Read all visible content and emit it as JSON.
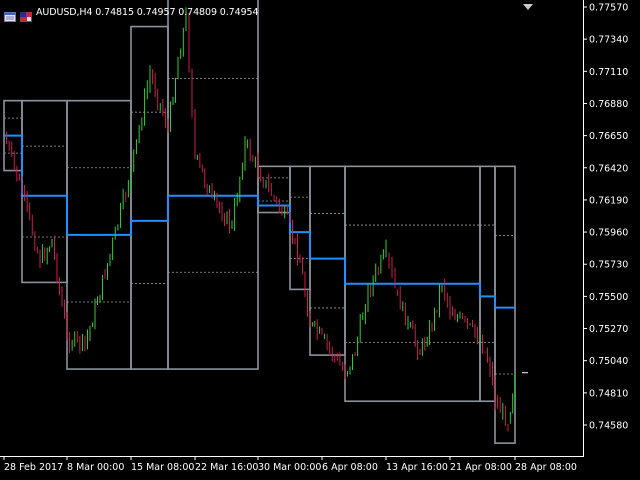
{
  "chart_info": {
    "symbol_timeframe": "AUDUSD,H4",
    "ohlc": "0.74815 0.74957 0.74809 0.74954",
    "icons": [
      "window-menu-icon",
      "flag-icon"
    ]
  },
  "colors": {
    "background": "#000000",
    "bull_candle": "#32CD32",
    "bear_candle": "#C71F4F",
    "channel_outer": "#8A939C",
    "channel_inner": "#9A9A9A",
    "midline": "#1E90FF",
    "axis": "#FFFFFF"
  },
  "price_axis": {
    "labels": [
      "0.77570",
      "0.77340",
      "0.77110",
      "0.76880",
      "0.76650",
      "0.76420",
      "0.76190",
      "0.75960",
      "0.75730",
      "0.75500",
      "0.75270",
      "0.75040",
      "0.74810",
      "0.74580"
    ],
    "min": 0.7436,
    "max": 0.7757
  },
  "time_axis": {
    "labels": [
      "28 Feb 2017",
      "8 Mar 00:00",
      "15 Mar 08:00",
      "22 Mar 16:00",
      "30 Mar 00:00",
      "6 Apr 08:00",
      "13 Apr 16:00",
      "21 Apr 08:00",
      "28 Apr 08:00"
    ]
  },
  "chart_data": {
    "type": "candlestick",
    "symbol": "AUDUSD",
    "timeframe": "H4",
    "ohlc_last": {
      "open": 0.74815,
      "high": 0.74957,
      "low": 0.74809,
      "close": 0.74954
    },
    "price_range": [
      0.7436,
      0.7757
    ],
    "close_path": [
      {
        "x": "28 Feb 2017",
        "y": 0.7665
      },
      {
        "x": "1 Mar",
        "y": 0.7625
      },
      {
        "x": "3 Mar",
        "y": 0.7575
      },
      {
        "x": "6 Mar",
        "y": 0.759
      },
      {
        "x": "8 Mar 00:00",
        "y": 0.752
      },
      {
        "x": "10 Mar",
        "y": 0.7515
      },
      {
        "x": "13 Mar",
        "y": 0.758
      },
      {
        "x": "15 Mar 08:00",
        "y": 0.764
      },
      {
        "x": "16 Mar",
        "y": 0.771
      },
      {
        "x": "17 Mar",
        "y": 0.767
      },
      {
        "x": "20 Mar",
        "y": 0.772
      },
      {
        "x": "21 Mar",
        "y": 0.775
      },
      {
        "x": "22 Mar 16:00",
        "y": 0.765
      },
      {
        "x": "24 Mar",
        "y": 0.762
      },
      {
        "x": "27 Mar",
        "y": 0.76
      },
      {
        "x": "28 Mar",
        "y": 0.766
      },
      {
        "x": "30 Mar 00:00",
        "y": 0.764
      },
      {
        "x": "31 Mar",
        "y": 0.76
      },
      {
        "x": "3 Apr",
        "y": 0.7575
      },
      {
        "x": "4 Apr",
        "y": 0.753
      },
      {
        "x": "6 Apr 08:00",
        "y": 0.752
      },
      {
        "x": "7 Apr",
        "y": 0.7495
      },
      {
        "x": "10 Apr",
        "y": 0.751
      },
      {
        "x": "11 Apr",
        "y": 0.7555
      },
      {
        "x": "13 Apr 16:00",
        "y": 0.758
      },
      {
        "x": "14 Apr",
        "y": 0.7555
      },
      {
        "x": "17 Apr",
        "y": 0.753
      },
      {
        "x": "18 Apr",
        "y": 0.751
      },
      {
        "x": "19 Apr",
        "y": 0.753
      },
      {
        "x": "20 Apr",
        "y": 0.756
      },
      {
        "x": "21 Apr 08:00",
        "y": 0.754
      },
      {
        "x": "24 Apr",
        "y": 0.752
      },
      {
        "x": "25 Apr",
        "y": 0.75
      },
      {
        "x": "26 Apr",
        "y": 0.7475
      },
      {
        "x": "27 Apr",
        "y": 0.746
      },
      {
        "x": "28 Apr 08:00",
        "y": 0.7495
      }
    ],
    "channels": [
      {
        "from": "28 Feb 2017",
        "to": "1 Mar",
        "high": 0.769,
        "low": 0.764,
        "mid": 0.7665
      },
      {
        "from": "1 Mar",
        "to": "8 Mar 00:00",
        "high": 0.769,
        "low": 0.756,
        "mid": 0.7622
      },
      {
        "from": "8 Mar 00:00",
        "to": "15 Mar 08:00",
        "high": 0.769,
        "low": 0.7498,
        "mid": 0.7594
      },
      {
        "from": "15 Mar 08:00",
        "to": "17 Mar",
        "high": 0.7743,
        "low": 0.7498,
        "mid": 0.7604
      },
      {
        "from": "17 Mar",
        "to": "30 Mar 00:00",
        "high": 0.7775,
        "low": 0.7498,
        "mid": 0.7622
      },
      {
        "from": "30 Mar 00:00",
        "to": "31 Mar",
        "high": 0.7643,
        "low": 0.761,
        "mid": 0.7615
      },
      {
        "from": "31 Mar",
        "to": "4 Apr",
        "high": 0.7643,
        "low": 0.7555,
        "mid": 0.7596
      },
      {
        "from": "4 Apr",
        "to": "7 Apr",
        "high": 0.7643,
        "low": 0.7508,
        "mid": 0.7577
      },
      {
        "from": "7 Apr",
        "to": "24 Apr",
        "high": 0.7643,
        "low": 0.7475,
        "mid": 0.7559
      },
      {
        "from": "24 Apr",
        "to": "26 Apr",
        "high": 0.7643,
        "low": 0.7475,
        "mid": 0.755
      },
      {
        "from": "26 Apr",
        "to": "28 Apr 08:00",
        "high": 0.7643,
        "low": 0.7445,
        "mid": 0.7542
      }
    ]
  }
}
